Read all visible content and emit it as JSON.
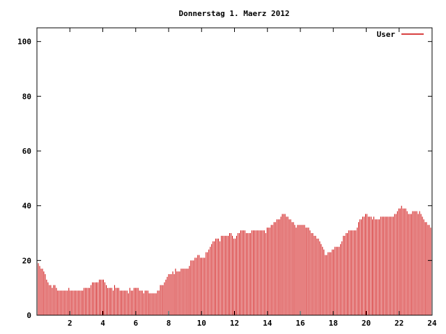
{
  "chart_data": {
    "type": "bar",
    "title": "Donnerstag 1. Maerz 2012",
    "xlabel": "",
    "ylabel": "",
    "xlim": [
      0,
      24
    ],
    "ylim": [
      0,
      105
    ],
    "x_ticks": [
      "2",
      "4",
      "6",
      "8",
      "10",
      "12",
      "14",
      "16",
      "18",
      "20",
      "22",
      "24"
    ],
    "y_ticks": [
      "0",
      "20",
      "40",
      "60",
      "80",
      "100"
    ],
    "grid": false,
    "legend_position": "top-right",
    "series_color": "#cc0000",
    "series": [
      {
        "name": "User",
        "keypoints": [
          [
            0.0,
            19
          ],
          [
            0.15,
            18
          ],
          [
            0.25,
            17
          ],
          [
            0.4,
            16
          ],
          [
            0.55,
            14
          ],
          [
            0.7,
            12
          ],
          [
            0.9,
            11
          ],
          [
            1.1,
            10
          ],
          [
            1.3,
            9
          ],
          [
            1.6,
            9
          ],
          [
            1.8,
            10
          ],
          [
            2.0,
            9
          ],
          [
            2.4,
            9
          ],
          [
            2.7,
            9
          ],
          [
            2.9,
            10
          ],
          [
            3.2,
            10
          ],
          [
            3.4,
            12
          ],
          [
            3.6,
            13
          ],
          [
            3.8,
            12
          ],
          [
            4.0,
            13
          ],
          [
            4.2,
            11
          ],
          [
            4.4,
            10
          ],
          [
            4.8,
            10
          ],
          [
            5.2,
            9
          ],
          [
            5.6,
            9
          ],
          [
            5.8,
            9
          ],
          [
            6.0,
            10
          ],
          [
            6.5,
            9
          ],
          [
            6.8,
            8
          ],
          [
            7.0,
            7.5
          ],
          [
            7.2,
            8.5
          ],
          [
            7.5,
            10
          ],
          [
            7.8,
            12
          ],
          [
            8.0,
            15
          ],
          [
            8.2,
            16
          ],
          [
            8.6,
            16
          ],
          [
            8.9,
            17
          ],
          [
            9.2,
            18
          ],
          [
            9.5,
            20
          ],
          [
            9.8,
            22
          ],
          [
            10.0,
            21
          ],
          [
            10.3,
            22
          ],
          [
            10.6,
            26
          ],
          [
            10.9,
            28
          ],
          [
            11.2,
            28
          ],
          [
            11.5,
            29
          ],
          [
            11.8,
            30
          ],
          [
            12.0,
            28
          ],
          [
            12.3,
            30
          ],
          [
            12.6,
            31
          ],
          [
            12.9,
            30
          ],
          [
            13.2,
            31
          ],
          [
            13.6,
            31
          ],
          [
            14.0,
            31
          ],
          [
            14.3,
            33
          ],
          [
            14.6,
            35
          ],
          [
            15.0,
            37
          ],
          [
            15.3,
            35
          ],
          [
            15.6,
            34
          ],
          [
            15.9,
            32
          ],
          [
            16.2,
            33
          ],
          [
            16.5,
            32
          ],
          [
            16.8,
            29
          ],
          [
            17.2,
            27
          ],
          [
            17.5,
            23
          ],
          [
            17.8,
            22
          ],
          [
            18.1,
            25
          ],
          [
            18.4,
            26
          ],
          [
            18.7,
            29
          ],
          [
            19.0,
            31
          ],
          [
            19.4,
            32
          ],
          [
            19.7,
            35
          ],
          [
            20.0,
            37
          ],
          [
            20.3,
            36
          ],
          [
            20.6,
            34
          ],
          [
            20.9,
            36
          ],
          [
            21.2,
            37
          ],
          [
            21.5,
            35
          ],
          [
            21.8,
            37
          ],
          [
            22.0,
            39
          ],
          [
            22.15,
            41
          ],
          [
            22.3,
            39
          ],
          [
            22.6,
            37
          ],
          [
            22.9,
            38
          ],
          [
            23.1,
            38
          ],
          [
            23.3,
            37
          ],
          [
            23.6,
            34
          ],
          [
            24.0,
            32
          ]
        ]
      }
    ]
  }
}
